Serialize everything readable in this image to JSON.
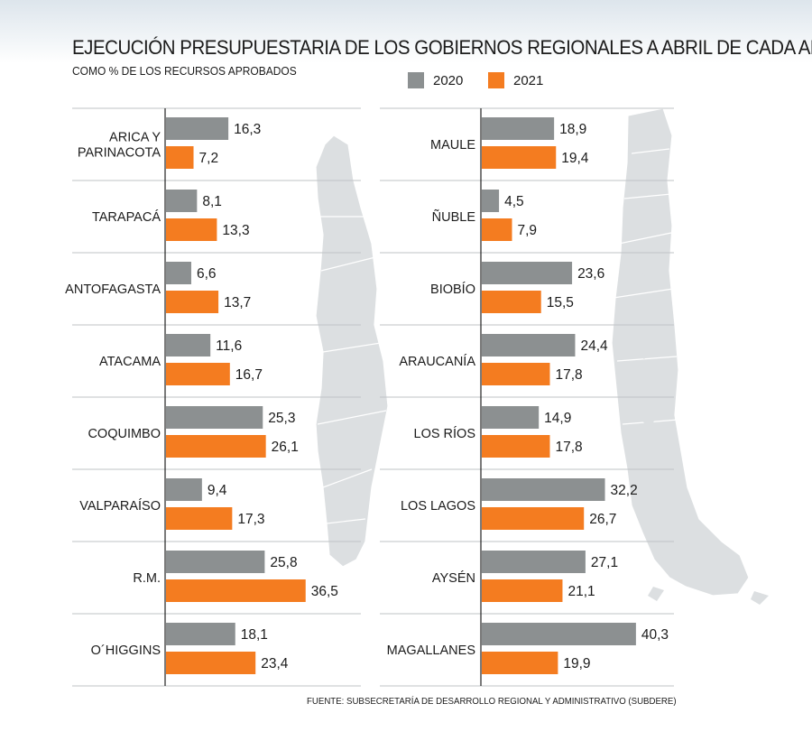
{
  "title": "EJECUCIÓN PRESUPUESTARIA DE LOS GOBIERNOS REGIONALES A ABRIL DE CADA AÑO",
  "subtitle": "COMO % DE LOS RECURSOS APROBADOS",
  "source": "FUENTE: SUBSECRETARÍA DE DESARROLLO REGIONAL Y ADMINISTRATIVO (SUBDERE)",
  "colors": {
    "series_2020": "#8c9091",
    "series_2021": "#f47c20",
    "map": "#dcdfe1",
    "axis": "#222222",
    "grid": "#bfc3c6"
  },
  "chart_data": [
    {
      "type": "bar",
      "orientation": "horizontal",
      "categories": [
        [
          "ARICA Y",
          "PARINACOTA"
        ],
        [
          "TARAPACÁ"
        ],
        [
          "ANTOFAGASTA"
        ],
        [
          "ATACAMA"
        ],
        [
          "COQUIMBO"
        ],
        [
          "VALPARAÍSO"
        ],
        [
          "R.M."
        ],
        [
          "O´HIGGINS"
        ]
      ],
      "series": [
        {
          "name": "2020",
          "values": [
            16.3,
            8.1,
            6.6,
            11.6,
            25.3,
            9.4,
            25.8,
            18.1
          ]
        },
        {
          "name": "2021",
          "values": [
            7.2,
            13.3,
            13.7,
            16.7,
            26.1,
            17.3,
            36.5,
            23.4
          ]
        }
      ],
      "value_labels": {
        "2020": [
          "16,3",
          "8,1",
          "6,6",
          "11,6",
          "25,3",
          "9,4",
          "25,8",
          "18,1"
        ],
        "2021": [
          "7,2",
          "13,3",
          "13,7",
          "16,7",
          "26,1",
          "17,3",
          "36,5",
          "23,4"
        ]
      },
      "xlim": [
        0,
        40.3
      ]
    },
    {
      "type": "bar",
      "orientation": "horizontal",
      "categories": [
        [
          "MAULE"
        ],
        [
          "ÑUBLE"
        ],
        [
          "BIOBÍO"
        ],
        [
          "ARAUCANÍA"
        ],
        [
          "LOS RÍOS"
        ],
        [
          "LOS LAGOS"
        ],
        [
          "AYSÉN"
        ],
        [
          "MAGALLANES"
        ]
      ],
      "series": [
        {
          "name": "2020",
          "values": [
            18.9,
            4.5,
            23.6,
            24.4,
            14.9,
            32.2,
            27.1,
            40.3
          ]
        },
        {
          "name": "2021",
          "values": [
            19.4,
            7.9,
            15.5,
            17.8,
            17.8,
            26.7,
            21.1,
            19.9
          ]
        }
      ],
      "value_labels": {
        "2020": [
          "18,9",
          "4,5",
          "23,6",
          "24,4",
          "14,9",
          "32,2",
          "27,1",
          "40,3"
        ],
        "2021": [
          "19,4",
          "7,9",
          "15,5",
          "17,8",
          "17,8",
          "26,7",
          "21,1",
          "19,9"
        ]
      },
      "xlim": [
        0,
        40.3
      ]
    }
  ]
}
